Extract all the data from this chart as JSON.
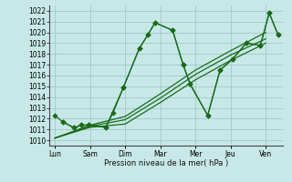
{
  "x_labels": [
    "Lun",
    "Sam",
    "Dim",
    "Mar",
    "Mer",
    "Jeu",
    "Ven"
  ],
  "x_positions": [
    0,
    1,
    2,
    3,
    4,
    5,
    6
  ],
  "xlabel": "Pression niveau de la mer( hPa )",
  "ylim": [
    1009.5,
    1022.5
  ],
  "yticks": [
    1010,
    1011,
    1012,
    1013,
    1014,
    1015,
    1016,
    1017,
    1018,
    1019,
    1020,
    1021,
    1022
  ],
  "bg_color": "#c8e8e8",
  "grid_color": "#a0c8c8",
  "line_color": "#1a6b1a",
  "series": [
    {
      "x": [
        0,
        0.22,
        0.55,
        0.75,
        0.95,
        1.45,
        1.65,
        1.95,
        2.4,
        2.65,
        2.85,
        3.35,
        3.65,
        3.85,
        4.35,
        4.7,
        5.05,
        5.45,
        5.85,
        6.1,
        6.35
      ],
      "y": [
        1012.3,
        1011.7,
        1011.15,
        1011.4,
        1011.4,
        1011.2,
        1012.5,
        1014.9,
        1018.5,
        1019.8,
        1020.9,
        1020.2,
        1017.0,
        1015.2,
        1012.3,
        1016.5,
        1017.5,
        1019.0,
        1018.8,
        1021.8,
        1019.8
      ],
      "marker": true
    },
    {
      "x": [
        0,
        1,
        2,
        3,
        4,
        5,
        6
      ],
      "y": [
        1010.2,
        1011.2,
        1011.5,
        1013.5,
        1015.6,
        1017.4,
        1019.0
      ],
      "marker": false
    },
    {
      "x": [
        0,
        1,
        2,
        3,
        4,
        5,
        6
      ],
      "y": [
        1010.2,
        1011.3,
        1011.9,
        1013.9,
        1016.1,
        1017.9,
        1019.4
      ],
      "marker": false
    },
    {
      "x": [
        0,
        1,
        2,
        3,
        4,
        5,
        6
      ],
      "y": [
        1010.2,
        1011.4,
        1012.2,
        1014.3,
        1016.5,
        1018.3,
        1020.0
      ],
      "marker": false
    },
    {
      "x": [
        0.22,
        0.55,
        0.75,
        0.95,
        1.45,
        1.95,
        2.4,
        2.65,
        2.85,
        3.35,
        3.65,
        3.85,
        4.35,
        4.7,
        5.05,
        5.45,
        5.85,
        6.1,
        6.35
      ],
      "y": [
        1011.7,
        1011.15,
        1011.4,
        1011.4,
        1011.2,
        1014.9,
        1018.5,
        1019.8,
        1020.9,
        1020.2,
        1017.0,
        1015.2,
        1012.3,
        1016.5,
        1017.5,
        1019.0,
        1018.8,
        1021.8,
        1019.8
      ],
      "marker": true
    }
  ],
  "marker": "D",
  "marker_size": 2.8,
  "line_width": 0.9
}
